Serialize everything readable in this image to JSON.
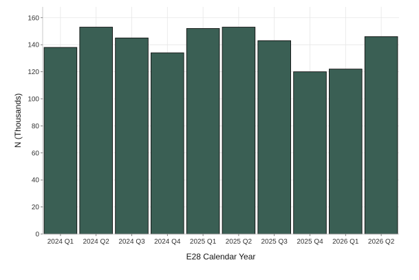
{
  "chart_data": {
    "type": "bar",
    "categories": [
      "2024 Q1",
      "2024 Q2",
      "2024 Q3",
      "2024 Q4",
      "2025 Q1",
      "2025 Q2",
      "2025 Q3",
      "2025 Q4",
      "2026 Q1",
      "2026 Q2"
    ],
    "values": [
      138,
      153,
      145,
      134,
      152,
      153,
      143,
      120,
      122,
      146
    ],
    "title": "",
    "xlabel": "E28 Calendar Year",
    "ylabel": "N (Thousands)",
    "ylim": [
      0,
      168
    ],
    "yticks": [
      0,
      20,
      40,
      60,
      80,
      100,
      120,
      140,
      160
    ],
    "grid": true,
    "colors": {
      "bar_fill": "#3a5f54",
      "bar_stroke": "#111111"
    }
  }
}
